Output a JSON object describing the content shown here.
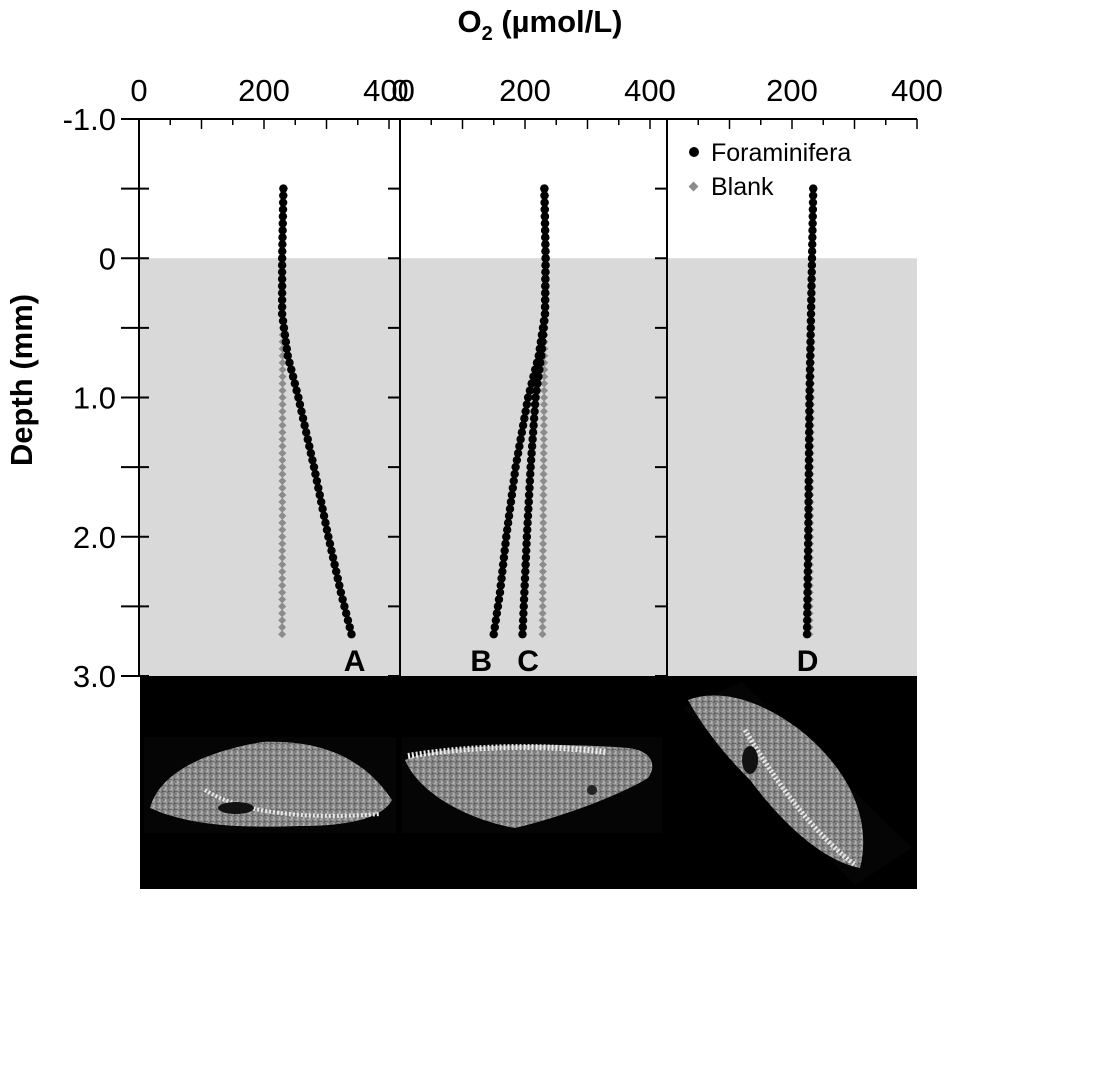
{
  "chart_data": {
    "type": "scatter",
    "xlabel": "O",
    "xlabel_subscript": "2",
    "xlabel_units": " (µmol/L)",
    "ylabel": "Depth (mm)",
    "xlim": [
      0,
      400
    ],
    "ylim": [
      -1.0,
      3.0
    ],
    "y_inverted": true,
    "x_ticks": [
      0,
      200,
      400
    ],
    "y_ticks": [
      -1.0,
      0,
      1.0,
      2.0,
      3.0
    ],
    "y_tick_labels": [
      "-1.0",
      "0",
      "1.0",
      "2.0",
      "3.0"
    ],
    "shaded_region": {
      "from": 0,
      "to": 3.0,
      "color": "#d9d9d9"
    },
    "legend": {
      "position": "top-right",
      "entries": [
        "Foraminifera",
        "Blank"
      ]
    },
    "colors": {
      "foraminifera": "#000000",
      "blank": "#8c8c8c",
      "shade": "#d9d9d9",
      "photo_bg": "#000000"
    },
    "panels": [
      {
        "id": "panel-1",
        "labels": [
          {
            "text": "A",
            "x": 345
          }
        ],
        "series": [
          {
            "name": "Foraminifera",
            "curve": "A",
            "depth_start": -0.5,
            "depth_end": 2.7,
            "profile": [
              [
                -0.5,
                231
              ],
              [
                0.0,
                229
              ],
              [
                0.4,
                229
              ],
              [
                0.7,
                238
              ],
              [
                1.0,
                255
              ],
              [
                1.5,
                280
              ],
              [
                2.0,
                303
              ],
              [
                2.4,
                323
              ],
              [
                2.7,
                340
              ]
            ]
          },
          {
            "name": "Blank",
            "depth_start": -0.5,
            "depth_end": 2.7,
            "profile": [
              [
                -0.5,
                232
              ],
              [
                0.0,
                230
              ],
              [
                2.7,
                229
              ]
            ]
          }
        ]
      },
      {
        "id": "panel-2",
        "labels": [
          {
            "text": "B",
            "x": 130
          },
          {
            "text": "C",
            "x": 205
          }
        ],
        "series": [
          {
            "name": "Foraminifera",
            "curve": "B",
            "depth_start": -0.5,
            "depth_end": 2.7,
            "profile": [
              [
                -0.5,
                231
              ],
              [
                0.0,
                233
              ],
              [
                0.4,
                232
              ],
              [
                0.7,
                222
              ],
              [
                1.0,
                205
              ],
              [
                1.5,
                185
              ],
              [
                2.0,
                170
              ],
              [
                2.4,
                160
              ],
              [
                2.7,
                150
              ]
            ]
          },
          {
            "name": "Foraminifera",
            "curve": "C",
            "depth_start": -0.5,
            "depth_end": 2.7,
            "profile": [
              [
                -0.5,
                231
              ],
              [
                0.0,
                233
              ],
              [
                0.4,
                232
              ],
              [
                0.7,
                226
              ],
              [
                1.0,
                217
              ],
              [
                1.5,
                209
              ],
              [
                2.0,
                203
              ],
              [
                2.4,
                199
              ],
              [
                2.7,
                196
              ]
            ]
          },
          {
            "name": "Blank",
            "depth_start": -0.5,
            "depth_end": 2.7,
            "profile": [
              [
                -0.5,
                232
              ],
              [
                0.0,
                232
              ],
              [
                2.7,
                228
              ]
            ]
          }
        ]
      },
      {
        "id": "panel-3",
        "labels": [
          {
            "text": "D",
            "x": 225
          }
        ],
        "series": [
          {
            "name": "Blank",
            "depth_start": -0.5,
            "depth_end": 2.7,
            "profile": [
              [
                -0.5,
                233
              ],
              [
                0.0,
                232
              ],
              [
                2.7,
                228
              ]
            ]
          },
          {
            "name": "Foraminifera",
            "curve": "D",
            "depth_start": -0.5,
            "depth_end": 2.7,
            "profile": [
              [
                -0.5,
                234
              ],
              [
                0.0,
                232
              ],
              [
                1.0,
                228
              ],
              [
                2.0,
                226
              ],
              [
                2.7,
                224
              ]
            ]
          }
        ]
      }
    ]
  },
  "photos": [
    {
      "name": "foraminifera-photo-1",
      "depicts": "foraminifera test, side view"
    },
    {
      "name": "foraminifera-photo-2",
      "depicts": "foraminifera test, side view"
    },
    {
      "name": "foraminifera-photo-3",
      "depicts": "foraminifera test, tilted view"
    }
  ]
}
